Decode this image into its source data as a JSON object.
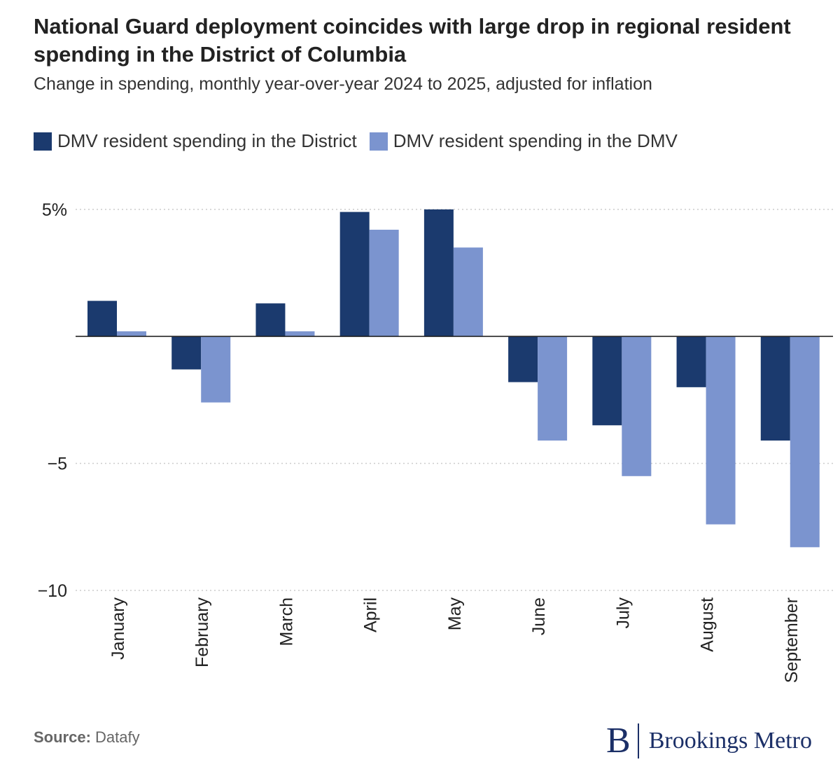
{
  "header": {
    "title": "National Guard deployment coincides with large drop in regional resident spending in the District of Columbia",
    "subtitle": "Change in spending, monthly year-over-year 2024 to 2025, adjusted for inflation"
  },
  "colors": {
    "district": "#1b3a6e",
    "dmv": "#7b94cf",
    "grid": "#cccccc",
    "axis": "#222222"
  },
  "chart_data": {
    "type": "bar",
    "title": "National Guard deployment coincides with large drop in regional resident spending in the District of Columbia",
    "subtitle": "Change in spending, monthly year-over-year 2024 to 2025, adjusted for inflation",
    "categories": [
      "January",
      "February",
      "March",
      "April",
      "May",
      "June",
      "July",
      "August",
      "September"
    ],
    "series": [
      {
        "name": "DMV resident spending in the District",
        "values": [
          1.4,
          -1.3,
          1.3,
          4.9,
          5.0,
          -1.8,
          -3.5,
          -2.0,
          -4.1
        ]
      },
      {
        "name": "DMV resident spending in the DMV",
        "values": [
          0.2,
          -2.6,
          0.2,
          4.2,
          3.5,
          -4.1,
          -5.5,
          -7.4,
          -8.3
        ]
      }
    ],
    "yticks": [
      5,
      -5,
      -10
    ],
    "ytick_labels": [
      "5%",
      "−5",
      "−10"
    ],
    "ylim": [
      -10,
      5
    ],
    "xlabel": "",
    "ylabel": "",
    "legend_position": "top-left",
    "grid": true
  },
  "footer": {
    "source_label": "Source:",
    "source_value": "Datafy",
    "logo_letter": "B",
    "logo_text": "Brookings Metro"
  }
}
